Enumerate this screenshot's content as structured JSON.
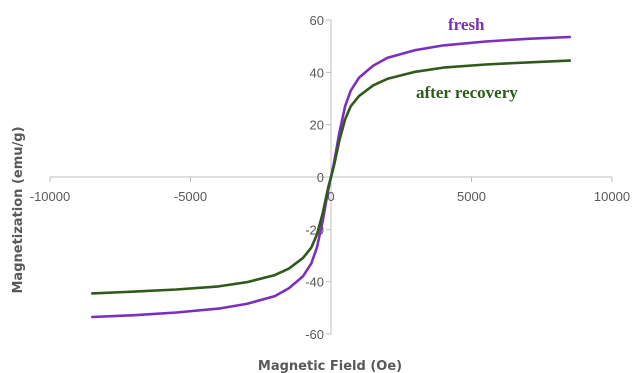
{
  "chart_data": {
    "type": "line",
    "xlabel": "Magnetic Field (Oe)",
    "ylabel": "Magnetization (emu/g)",
    "xlim": [
      -10000,
      10000
    ],
    "ylim": [
      -60,
      60
    ],
    "x_ticks": [
      -10000,
      -5000,
      0,
      5000,
      10000
    ],
    "y_ticks": [
      -60,
      -40,
      -20,
      0,
      20,
      40,
      60
    ],
    "grid": false,
    "series": [
      {
        "name": "fresh",
        "color": "#7b2fbe",
        "x": [
          -8500,
          -7000,
          -5500,
          -4000,
          -3000,
          -2000,
          -1500,
          -1000,
          -700,
          -500,
          -300,
          -200,
          -100,
          0,
          100,
          200,
          300,
          500,
          700,
          1000,
          1500,
          2000,
          3000,
          4000,
          5500,
          7000,
          8500
        ],
        "y": [
          -53.5,
          -52.8,
          -51.8,
          -50.3,
          -48.5,
          -45.5,
          -42.5,
          -38,
          -33,
          -27,
          -17,
          -11,
          -5,
          0,
          5,
          11,
          17,
          27,
          33,
          38,
          42.5,
          45.5,
          48.5,
          50.3,
          51.8,
          52.8,
          53.5
        ]
      },
      {
        "name": "after recovery",
        "color": "#2e5a1c",
        "x": [
          -8500,
          -7000,
          -5500,
          -4000,
          -3000,
          -2000,
          -1500,
          -1000,
          -700,
          -500,
          -300,
          -200,
          -100,
          0,
          100,
          200,
          300,
          500,
          700,
          1000,
          1500,
          2000,
          3000,
          4000,
          5500,
          7000,
          8500
        ],
        "y": [
          -44.5,
          -43.8,
          -43,
          -41.8,
          -40.2,
          -37.5,
          -35,
          -31,
          -27,
          -22,
          -14,
          -9,
          -4,
          0,
          4,
          9,
          14,
          22,
          27,
          31,
          35,
          37.5,
          40.2,
          41.8,
          43,
          43.8,
          44.5
        ]
      }
    ]
  }
}
